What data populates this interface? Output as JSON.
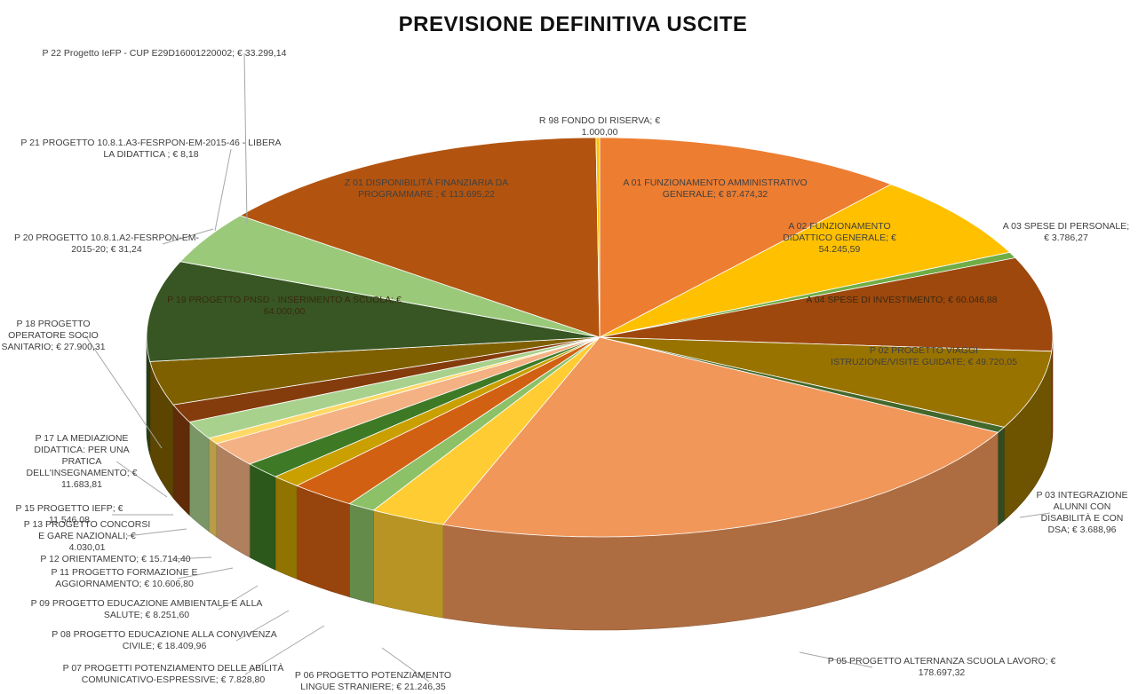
{
  "chart_data": {
    "type": "pie3d",
    "title": "PREVISIONE DEFINITIVA USCITE",
    "categories": [
      "A 01 FUNZIONAMENTO AMMINISTRATIVO GENERALE;",
      "A 02 FUNZIONAMENTO DIDATTICO GENERALE;",
      "A 03 SPESE DI PERSONALE;",
      "A 04 SPESE DI INVESTIMENTO;",
      "P 02 PROGETTO VIAGGI ISTRUZIONE/VISITE GUIDATE;",
      "P 03 INTEGRAZIONE ALUNNI CON DISABILITÀ E CON DSA;",
      "P 05 PROGETTO ALTERNANZA SCUOLA LAVORO;",
      "P 06 PROGETTO POTENZIAMENTO LINGUE STRANIERE;",
      "P 07 PROGETTI POTENZIAMENTO DELLE ABILITÀ COMUNICATIVO-ESPRESSIVE;",
      "P 08 PROGETTO EDUCAZIONE ALLA CONVIVENZA CIVILE;",
      "P 09 PROGETTO EDUCAZIONE AMBIENTALE E ALLA SALUTE;",
      "P 11 PROGETTO FORMAZIONE E AGGIORNAMENTO;",
      "P 12 ORIENTAMENTO;",
      "P 13 PROGETTO CONCORSI E GARE NAZIONALI;",
      "P 15 PROGETTO IEFP;",
      "P 17 LA MEDIAZIONE DIDATTICA: PER UNA PRATICA DELL'INSEGNAMENTO;",
      "P 18 PROGETTO OPERATORE SOCIO SANITARIO;",
      "P 19 PROGETTO PNSD - INSERIMENTO A SCUOLA;",
      "P 20 PROGETTO 10.8.1.A2-FESRPON-EM-2015-20;",
      "P 21 PROGETTO 10.8.1.A3-FESRPON-EM-2015-46 - LIBERA LA DIDATTICA ;",
      "P 22 Progetto IeFP - CUP E29D16001220002;",
      "Z 01 DISPONIBILITÀ FINANZIARIA DA PROGRAMMARE ;",
      "R 98 FONDO DI RISERVA;"
    ],
    "values": [
      87474.32,
      54245.59,
      3786.27,
      60046.88,
      49720.05,
      3688.96,
      178697.32,
      21246.35,
      7828.8,
      18409.96,
      8251.6,
      10606.8,
      15714.4,
      4030.01,
      11546.08,
      11683.81,
      27900.31,
      64000.0,
      31.24,
      8.18,
      33299.14,
      113695.22,
      1000.0
    ],
    "value_labels": [
      "€ 87.474,32",
      "€ 54.245,59",
      "€ 3.786,27",
      "€ 60.046,88",
      "€ 49.720,05",
      "€ 3.688,96",
      "€ 178.697,32",
      "€ 21.246,35",
      "€ 7.828,80",
      "€ 18.409,96",
      "€ 8.251,60",
      "€ 10.606,80",
      "€ 15.714,40",
      "€ 4.030,01",
      "€ 11.546,08",
      "€ 11.683,81",
      "€ 27.900,31",
      "€ 64.000,00",
      "€ 31,24",
      "€ 8,18",
      "€ 33.299,14",
      "€ 113.695,22",
      "€ 1.000,00"
    ],
    "colors": [
      "#ED7D31",
      "#FFC000",
      "#70AD47",
      "#9E480E",
      "#997300",
      "#43682B",
      "#F1975A",
      "#FFCD33",
      "#8CC168",
      "#D26012",
      "#C9A000",
      "#3E7A26",
      "#F4B183",
      "#FFD966",
      "#A9D18E",
      "#843C0C",
      "#7F6000",
      "#375623",
      "#5A8A3A",
      "#C55A11",
      "#9BC97A",
      "#B25410",
      "#FFC000"
    ]
  }
}
